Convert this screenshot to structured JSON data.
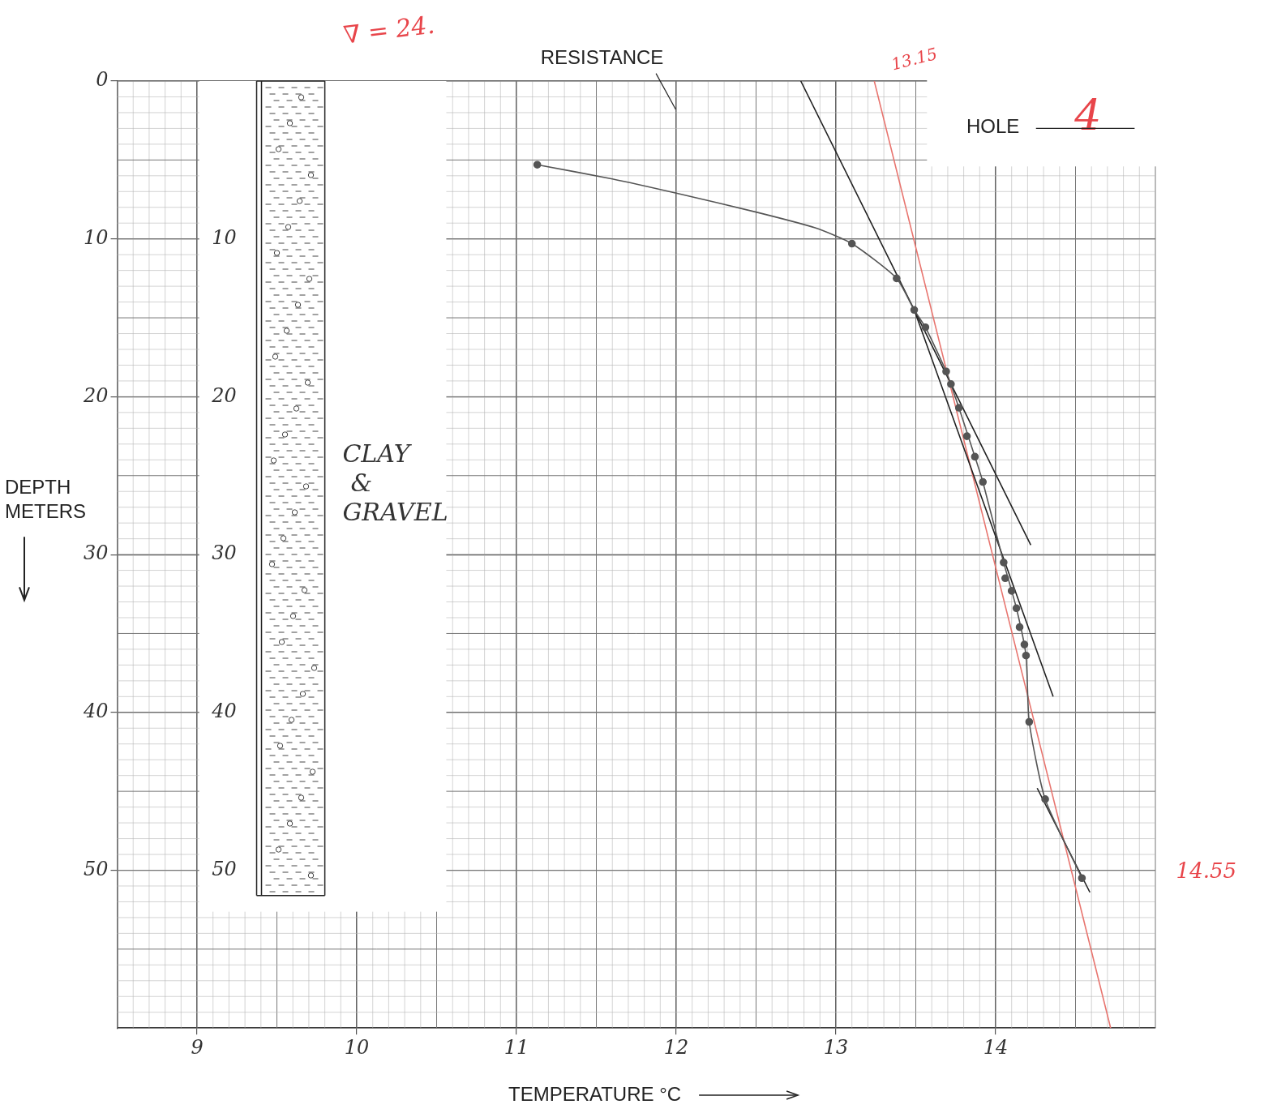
{
  "chart_data": {
    "type": "line",
    "x_label": "TEMPERATURE °C",
    "y_label": "DEPTH METERS",
    "xlim": [
      8.5,
      15
    ],
    "xticks": [
      9,
      10,
      11,
      12,
      13,
      14
    ],
    "ylim": [
      0,
      60
    ],
    "yticks": [
      0,
      10,
      20,
      30,
      40,
      50
    ],
    "grid": true,
    "series": [
      {
        "color": "#555555",
        "marker": "none",
        "line_style": "solid",
        "x": [
          11.13,
          11.6,
          12.0,
          12.5,
          12.87,
          13.1,
          13.38,
          13.49,
          13.56,
          13.69,
          13.77,
          13.87,
          13.92,
          14.05,
          14.13,
          14.19,
          14.21,
          14.31,
          14.54
        ],
        "values": [
          5.3,
          6.2,
          7.1,
          8.3,
          9.3,
          10.3,
          12.5,
          14.5,
          15.6,
          18.4,
          20.7,
          23.8,
          25.4,
          30.5,
          33.4,
          36.4,
          40.6,
          45.5,
          50.5
        ]
      },
      {
        "color": "#555555",
        "marker": "circle",
        "line_style": "none",
        "x": [
          11.13,
          13.1,
          13.38,
          13.49,
          13.56,
          13.69,
          13.72,
          13.77,
          13.82,
          13.87,
          13.92,
          14.05,
          14.06,
          14.1,
          14.13,
          14.15,
          14.18,
          14.19,
          14.21,
          14.31,
          14.54
        ],
        "values": [
          5.3,
          10.3,
          12.5,
          14.5,
          15.6,
          18.4,
          19.2,
          20.7,
          22.5,
          23.8,
          25.4,
          30.5,
          31.5,
          32.3,
          33.4,
          34.6,
          35.7,
          36.4,
          40.6,
          45.5,
          50.5
        ]
      },
      {
        "color": "#222222",
        "marker": "none",
        "line_style": "solid",
        "x": [
          12.78,
          14.22
        ],
        "values": [
          0,
          29.4
        ]
      },
      {
        "color": "#222222",
        "marker": "none",
        "line_style": "solid",
        "x": [
          13.49,
          14.36
        ],
        "values": [
          14.5,
          39.0
        ]
      },
      {
        "color": "#222222",
        "marker": "none",
        "line_style": "solid",
        "x": [
          14.26,
          14.59
        ],
        "values": [
          44.8,
          51.4
        ]
      },
      {
        "color": "#e8756f",
        "marker": "none",
        "line_style": "solid",
        "x": [
          13.24,
          14.72
        ],
        "values": [
          0,
          60
        ]
      }
    ],
    "annotations": [
      {
        "text": "RESISTANCE",
        "color": "#222222"
      },
      {
        "text": "∇ = 24.",
        "color": "#e8454a"
      },
      {
        "text": "13.15",
        "color": "#e8454a"
      },
      {
        "text": "14.55",
        "color": "#e8454a"
      },
      {
        "text": "HOLE",
        "color": "#222222"
      },
      {
        "text": "4",
        "color": "#e8454a"
      }
    ],
    "column": {
      "lithology": "CLAY & GRAVEL",
      "depth_labels": [
        10,
        20,
        30,
        40,
        50
      ],
      "depth_range": [
        0,
        51.6
      ]
    }
  }
}
